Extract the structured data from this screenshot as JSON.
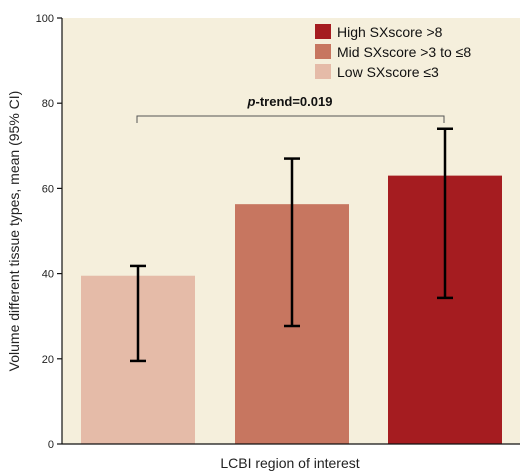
{
  "chart_data": {
    "type": "bar",
    "title": "",
    "xlabel": "LCBI region of interest",
    "ylabel": "Volume different tissue types, mean (95% CI)",
    "ylim": [
      0,
      100
    ],
    "yticks": [
      0,
      20,
      40,
      60,
      80,
      100
    ],
    "grid": false,
    "legend_position": "top-right",
    "series": [
      {
        "name": "Low SXscore ≤3",
        "value": 39.5,
        "ci": [
          19.5,
          41.8
        ],
        "color": "#e5bba8"
      },
      {
        "name": "Mid SXscore >3 to ≤8",
        "value": 56.3,
        "ci": [
          27.7,
          67.0
        ],
        "color": "#c77660"
      },
      {
        "name": "High SXscore >8",
        "value": 63.0,
        "ci": [
          34.3,
          74.0
        ],
        "color": "#a51c20"
      }
    ],
    "legend_order": [
      2,
      1,
      0
    ],
    "annotation": {
      "italic": "p",
      "text": "-trend=0.019"
    },
    "background_color": "#f5efdc"
  }
}
